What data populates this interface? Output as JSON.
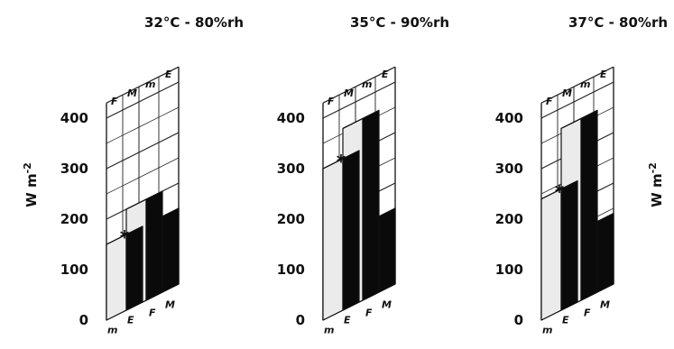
{
  "y_axis_label": "W m-2",
  "y_axis_label_main": "W m",
  "y_axis_label_exp": "-2",
  "y_ticks": [
    "0",
    "100",
    "200",
    "300",
    "400"
  ],
  "factor_labels": {
    "front_left": [
      "m",
      "E"
    ],
    "front_right": [
      "F",
      "M"
    ],
    "back_left": [
      "F",
      "M"
    ],
    "back_right": [
      "m",
      "E"
    ]
  },
  "star": "*",
  "colors": {
    "light_face": "#ebebeb",
    "dark_face": "#0a0a0a",
    "top_face": "#ffffff",
    "grid": "#222222"
  },
  "chart_data": [
    {
      "type": "bar",
      "title": "32°C - 80%rh",
      "ylabel": "W m-2",
      "ylim": [
        0,
        400
      ],
      "rows": [
        "F",
        "M"
      ],
      "columns": [
        "ṁ",
        "E"
      ],
      "values": [
        [
          150,
          200
        ],
        [
          110,
          150
        ]
      ],
      "marked": [
        [
          true,
          false
        ],
        [
          true,
          false
        ]
      ]
    },
    {
      "type": "bar",
      "title": "35°C - 90%rh",
      "ylabel": "W m-2",
      "ylim": [
        0,
        400
      ],
      "rows": [
        "F",
        "M"
      ],
      "columns": [
        "ṁ",
        "E"
      ],
      "values": [
        [
          300,
          360
        ],
        [
          110,
          150
        ]
      ],
      "marked": [
        [
          true,
          false
        ],
        [
          false,
          false
        ]
      ]
    },
    {
      "type": "bar",
      "title": "37°C - 80%rh",
      "ylabel": "W m-2",
      "ylim": [
        0,
        400
      ],
      "rows": [
        "F",
        "M"
      ],
      "columns": [
        "ṁ",
        "E"
      ],
      "values": [
        [
          240,
          360
        ],
        [
          100,
          140
        ]
      ],
      "marked": [
        [
          true,
          false
        ],
        [
          false,
          false
        ]
      ]
    }
  ]
}
